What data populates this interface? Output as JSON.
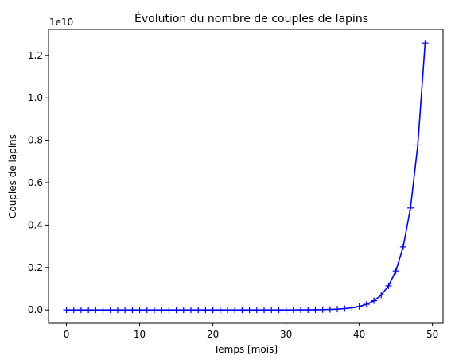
{
  "chart_data": {
    "type": "line",
    "title": "Évolution du nombre de couples de lapins",
    "xlabel": "Temps [mois]",
    "ylabel": "Couples de lapins",
    "y_offset_label": "1e10",
    "xlim": [
      -2.45,
      51.45
    ],
    "ylim": [
      -0.063,
      1.323
    ],
    "y_scale_factor": 10000000000.0,
    "x_ticks": [
      0,
      10,
      20,
      30,
      40,
      50
    ],
    "x_tick_labels": [
      "0",
      "10",
      "20",
      "30",
      "40",
      "50"
    ],
    "y_ticks": [
      0.0,
      0.2,
      0.4,
      0.6,
      0.8,
      1.0,
      1.2
    ],
    "y_tick_labels": [
      "0.0",
      "0.2",
      "0.4",
      "0.6",
      "0.8",
      "1.0",
      "1.2"
    ],
    "grid": false,
    "series": [
      {
        "marker": "+",
        "color": "#0000ff",
        "x": [
          0,
          1,
          2,
          3,
          4,
          5,
          6,
          7,
          8,
          9,
          10,
          11,
          12,
          13,
          14,
          15,
          16,
          17,
          18,
          19,
          20,
          21,
          22,
          23,
          24,
          25,
          26,
          27,
          28,
          29,
          30,
          31,
          32,
          33,
          34,
          35,
          36,
          37,
          38,
          39,
          40,
          41,
          42,
          43,
          44,
          45,
          46,
          47,
          48,
          49
        ],
        "y": [
          1,
          1,
          2,
          3,
          5,
          8,
          13,
          21,
          34,
          55,
          89,
          144,
          233,
          377,
          610,
          987,
          1597,
          2584,
          4181,
          6765,
          10946,
          17711,
          28657,
          46368,
          75025,
          121393,
          196418,
          317811,
          514229,
          832040,
          1346269,
          2178309,
          3524578,
          5702887,
          9227465,
          14930352,
          24157817,
          39088169,
          63245986,
          102334155,
          165580141,
          267914296,
          433494437,
          701408733,
          1134903170,
          1836311903,
          2971215073,
          4807526976,
          7778742049,
          12586269025
        ]
      }
    ]
  }
}
